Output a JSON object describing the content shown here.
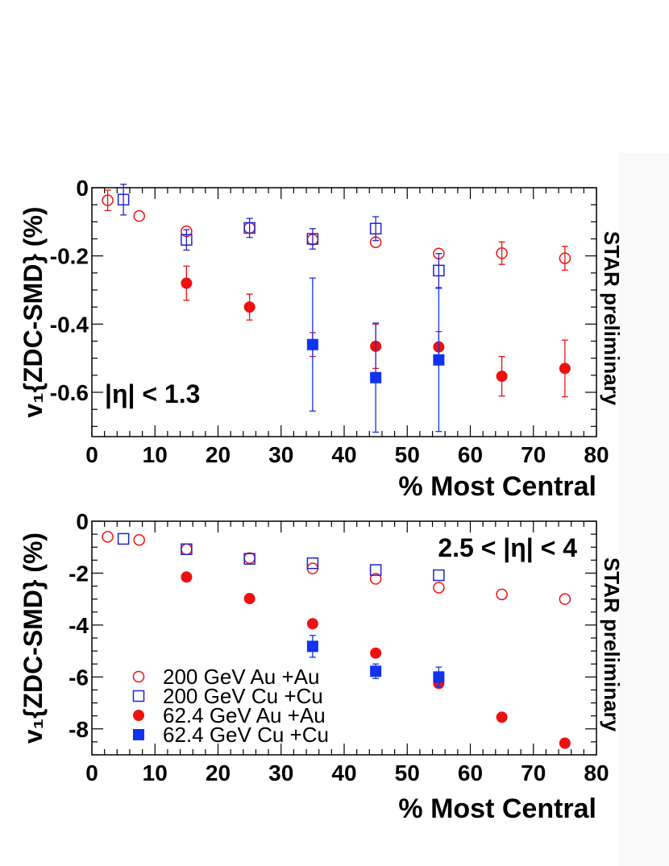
{
  "chart_data": [
    {
      "type": "scatter",
      "xlabel": "% Most Central",
      "ylabel": "v₁{ZDC-SMD} (%)",
      "annotation": "|η| < 1.3",
      "side_label": "STAR preliminary",
      "xlim": [
        0,
        80
      ],
      "ylim": [
        -0.73,
        0
      ],
      "xticks": [
        "0",
        "10",
        "20",
        "30",
        "40",
        "50",
        "60",
        "70",
        "80"
      ],
      "yticks": [
        "0",
        "-0.2",
        "-0.4",
        "-0.6"
      ],
      "ytick_values": [
        0,
        -0.2,
        -0.4,
        -0.6
      ],
      "grid": false,
      "series": [
        {
          "name": "200 GeV Au +Au",
          "marker": "open-circle",
          "color": "#ee1111",
          "points": [
            {
              "x": 2.5,
              "y": -0.037,
              "err": 0.03
            },
            {
              "x": 7.5,
              "y": -0.083
            },
            {
              "x": 15,
              "y": -0.128
            },
            {
              "x": 25,
              "y": -0.118
            },
            {
              "x": 35,
              "y": -0.152
            },
            {
              "x": 45,
              "y": -0.16
            },
            {
              "x": 55,
              "y": -0.193
            },
            {
              "x": 65,
              "y": -0.192,
              "err": 0.033
            },
            {
              "x": 75,
              "y": -0.207,
              "err": 0.035
            }
          ]
        },
        {
          "name": "200 GeV Cu +Cu",
          "marker": "open-square",
          "color": "#2222cc",
          "points": [
            {
              "x": 5,
              "y": -0.035,
              "err": 0.045
            },
            {
              "x": 15,
              "y": -0.153,
              "err": 0.03
            },
            {
              "x": 25,
              "y": -0.118,
              "err": 0.028
            },
            {
              "x": 35,
              "y": -0.15,
              "err": 0.03
            },
            {
              "x": 45,
              "y": -0.12,
              "err": 0.035
            },
            {
              "x": 55,
              "y": -0.243,
              "err": 0.05
            }
          ]
        },
        {
          "name": "62.4 GeV Au +Au",
          "marker": "filled-circle",
          "color": "#ee1111",
          "points": [
            {
              "x": 15,
              "y": -0.28,
              "err": 0.05
            },
            {
              "x": 25,
              "y": -0.35,
              "err": 0.038
            },
            {
              "x": 35,
              "y": -0.46,
              "err": 0.035
            },
            {
              "x": 45,
              "y": -0.465,
              "err": 0.065
            },
            {
              "x": 55,
              "y": -0.467,
              "err": 0.045
            },
            {
              "x": 65,
              "y": -0.553,
              "err": 0.058
            },
            {
              "x": 75,
              "y": -0.53,
              "err": 0.083
            }
          ]
        },
        {
          "name": "62.4 GeV Cu +Cu",
          "marker": "filled-square",
          "color": "#1133ee",
          "points": [
            {
              "x": 35,
              "y": -0.46,
              "err": 0.195
            },
            {
              "x": 45,
              "y": -0.557,
              "err": 0.16
            },
            {
              "x": 55,
              "y": -0.505,
              "err": 0.21
            }
          ]
        }
      ]
    },
    {
      "type": "scatter",
      "xlabel": "% Most Central",
      "ylabel": "v₁{ZDC-SMD} (%)",
      "annotation": "2.5 < |η| < 4",
      "side_label": "STAR preliminary",
      "xlim": [
        0,
        80
      ],
      "ylim": [
        -9,
        0
      ],
      "xticks": [
        "0",
        "10",
        "20",
        "30",
        "40",
        "50",
        "60",
        "70",
        "80"
      ],
      "yticks": [
        "0",
        "-2",
        "-4",
        "-6",
        "-8"
      ],
      "ytick_values": [
        0,
        -2,
        -4,
        -6,
        -8
      ],
      "grid": false,
      "legend": {
        "placement": "bottom-left",
        "entries": [
          "200 GeV Au +Au",
          "200 GeV Cu +Cu",
          "62.4 GeV Au +Au",
          "62.4 GeV Cu +Cu"
        ]
      },
      "series": [
        {
          "name": "200 GeV Au +Au",
          "marker": "open-circle",
          "color": "#ee1111",
          "points": [
            {
              "x": 2.5,
              "y": -0.6
            },
            {
              "x": 7.5,
              "y": -0.72
            },
            {
              "x": 15,
              "y": -1.08
            },
            {
              "x": 25,
              "y": -1.42
            },
            {
              "x": 35,
              "y": -1.82
            },
            {
              "x": 45,
              "y": -2.22
            },
            {
              "x": 55,
              "y": -2.56
            },
            {
              "x": 65,
              "y": -2.82
            },
            {
              "x": 75,
              "y": -3.0
            }
          ]
        },
        {
          "name": "200 GeV Cu +Cu",
          "marker": "open-square",
          "color": "#2222cc",
          "points": [
            {
              "x": 5,
              "y": -0.68
            },
            {
              "x": 15,
              "y": -1.08
            },
            {
              "x": 25,
              "y": -1.45
            },
            {
              "x": 35,
              "y": -1.62
            },
            {
              "x": 45,
              "y": -1.88
            },
            {
              "x": 55,
              "y": -2.08
            }
          ]
        },
        {
          "name": "62.4 GeV Au +Au",
          "marker": "filled-circle",
          "color": "#ee1111",
          "points": [
            {
              "x": 15,
              "y": -2.15
            },
            {
              "x": 25,
              "y": -2.98
            },
            {
              "x": 35,
              "y": -3.95
            },
            {
              "x": 45,
              "y": -5.08
            },
            {
              "x": 55,
              "y": -6.25
            },
            {
              "x": 65,
              "y": -7.55
            },
            {
              "x": 75,
              "y": -8.55
            }
          ]
        },
        {
          "name": "62.4 GeV Cu +Cu",
          "marker": "filled-square",
          "color": "#1133ee",
          "points": [
            {
              "x": 35,
              "y": -4.82,
              "err": 0.42
            },
            {
              "x": 45,
              "y": -5.78,
              "err": 0.28
            },
            {
              "x": 55,
              "y": -6.0,
              "err": 0.38
            }
          ]
        }
      ]
    }
  ]
}
